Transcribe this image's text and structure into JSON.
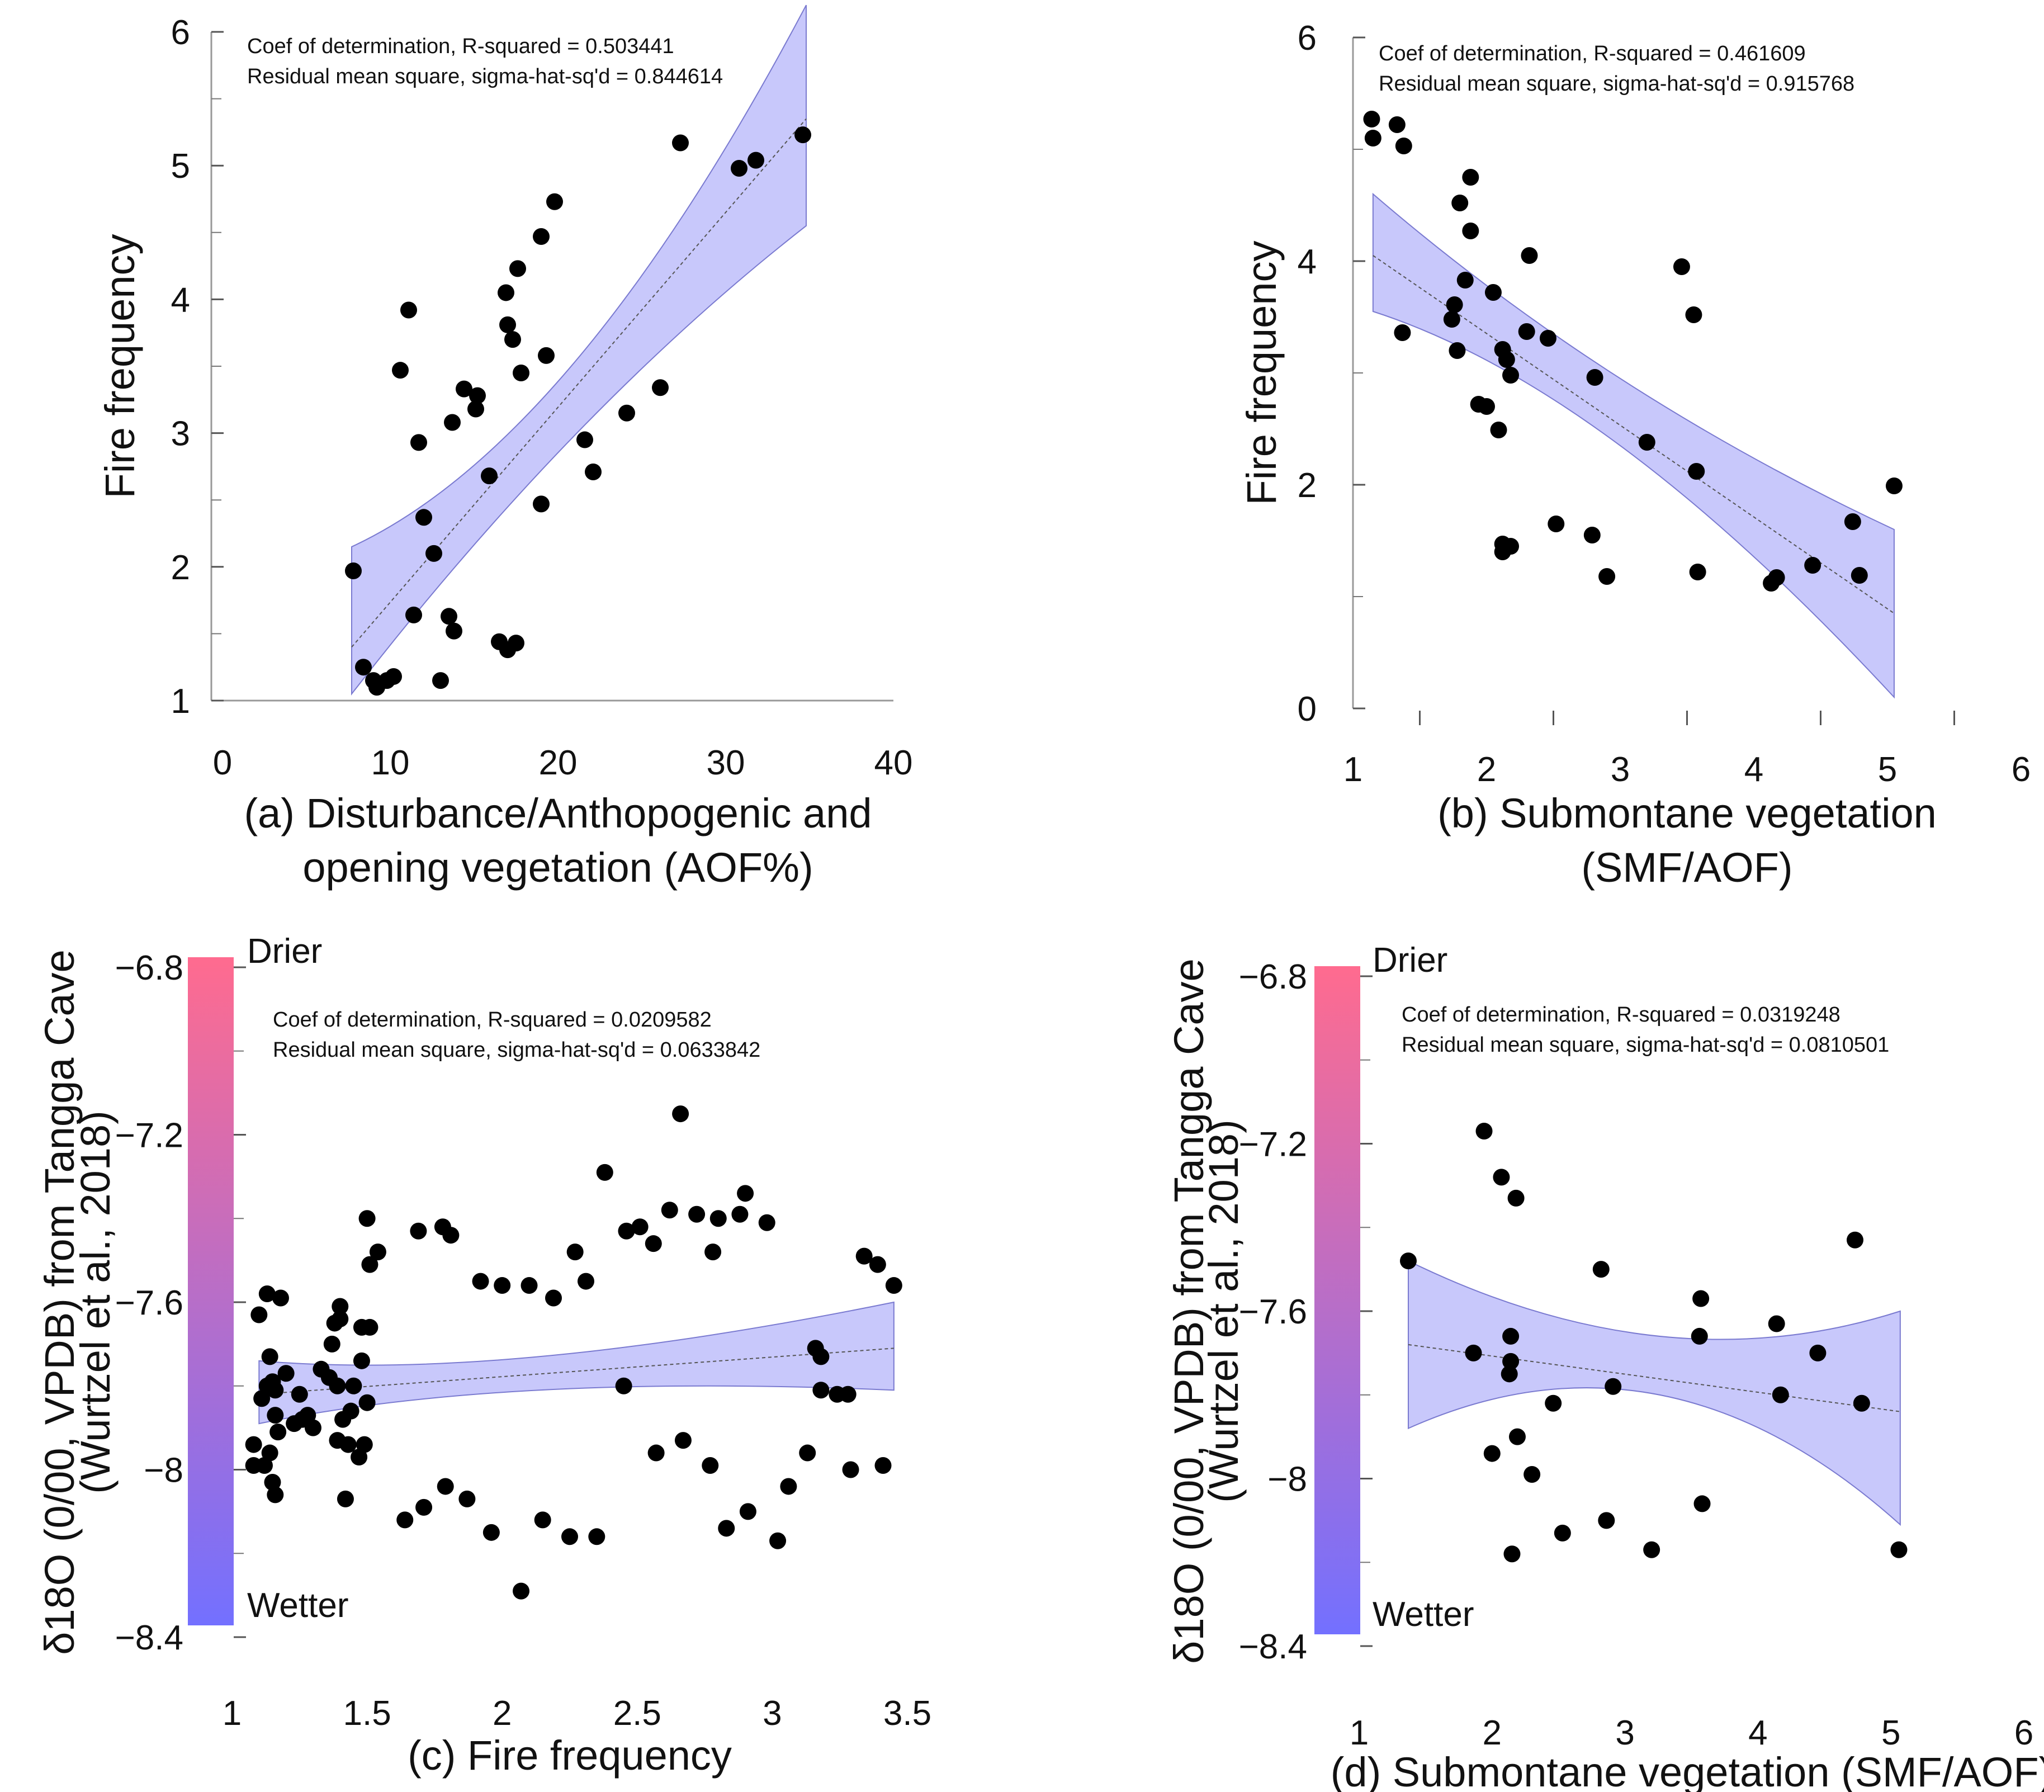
{
  "colorbar": {
    "top_color": "#ff6b8f",
    "bottom_color": "#7370ff",
    "top_label": "Drier",
    "bottom_label": "Wetter",
    "top_label_color": "#e8173f",
    "bottom_label_color": "#2a1ad8"
  },
  "band_color": "#c8c8fb",
  "point_color": "#000000",
  "chart_data": [
    {
      "id": "a",
      "type": "scatter",
      "xlabel": [
        "(a) Disturbance/Anthopogenic and",
        "opening vegetation (AOF%)"
      ],
      "ylabel": "Fire frequency",
      "xlim": [
        0,
        40
      ],
      "ylim": [
        1,
        6
      ],
      "xticks": [
        0,
        10,
        20,
        30,
        40
      ],
      "yticks": [
        1,
        2,
        3,
        4,
        5,
        6
      ],
      "yminor": [
        1.5,
        2.5,
        3.5,
        4.5,
        5.5
      ],
      "annotations": [
        "Coef of determination, R-squared = 0.503441",
        "Residual mean square, sigma-hat-sq'd = 0.844614"
      ],
      "fit": {
        "x0": 7.7,
        "x1": 34.8,
        "y0": 1.4,
        "y1": 5.35
      },
      "band": {
        "upper": [
          [
            7.7,
            2.15
          ],
          [
            21,
            3.55
          ],
          [
            34.8,
            6.2
          ]
        ],
        "lower": [
          [
            7.7,
            1.05
          ],
          [
            21,
            3.0
          ],
          [
            34.8,
            4.55
          ]
        ]
      },
      "points": [
        [
          7.8,
          1.97
        ],
        [
          8.4,
          1.25
        ],
        [
          9.0,
          1.15
        ],
        [
          9.2,
          1.1
        ],
        [
          9.8,
          1.15
        ],
        [
          10.2,
          1.18
        ],
        [
          10.6,
          3.47
        ],
        [
          11.1,
          3.92
        ],
        [
          11.4,
          1.64
        ],
        [
          11.7,
          2.93
        ],
        [
          12.0,
          2.37
        ],
        [
          12.6,
          2.1
        ],
        [
          13.0,
          1.15
        ],
        [
          13.5,
          1.63
        ],
        [
          13.7,
          3.08
        ],
        [
          13.8,
          1.52
        ],
        [
          14.4,
          3.33
        ],
        [
          15.1,
          3.18
        ],
        [
          15.2,
          3.28
        ],
        [
          15.9,
          2.68
        ],
        [
          16.5,
          1.44
        ],
        [
          16.9,
          4.05
        ],
        [
          17.0,
          1.38
        ],
        [
          17.0,
          3.81
        ],
        [
          17.3,
          3.7
        ],
        [
          17.5,
          1.43
        ],
        [
          17.6,
          4.23
        ],
        [
          17.8,
          3.45
        ],
        [
          19.0,
          4.47
        ],
        [
          19.0,
          2.47
        ],
        [
          19.3,
          3.58
        ],
        [
          19.8,
          4.73
        ],
        [
          21.6,
          2.95
        ],
        [
          22.1,
          2.71
        ],
        [
          24.1,
          3.15
        ],
        [
          26.1,
          3.34
        ],
        [
          27.3,
          5.17
        ],
        [
          30.8,
          4.98
        ],
        [
          31.8,
          5.04
        ],
        [
          34.6,
          5.23
        ]
      ]
    },
    {
      "id": "b",
      "type": "scatter",
      "xlabel": [
        "(b) Submontane vegetation",
        "(SMF/AOF)"
      ],
      "ylabel": "Fire frequency",
      "xlim": [
        1,
        6
      ],
      "ylim": [
        0,
        6
      ],
      "xticks": [
        1,
        2,
        3,
        4,
        5,
        6
      ],
      "xminor": [
        1.5,
        2.5,
        3.5,
        4.5,
        5.5
      ],
      "yticks": [
        0,
        2,
        4,
        6
      ],
      "yminor": [
        1,
        3,
        5
      ],
      "annotations": [
        "Coef of determination, R-squared = 0.461609",
        "Residual mean square, sigma-hat-sq'd = 0.915768"
      ],
      "fit": {
        "x0": 1.15,
        "x1": 5.05,
        "y0": 4.05,
        "y1": 0.85
      },
      "band": {
        "upper": [
          [
            1.15,
            4.6
          ],
          [
            2.9,
            2.95
          ],
          [
            5.05,
            1.6
          ]
        ],
        "lower": [
          [
            1.15,
            3.55
          ],
          [
            2.9,
            2.35
          ],
          [
            5.05,
            0.1
          ]
        ]
      },
      "points": [
        [
          1.14,
          5.27
        ],
        [
          1.15,
          5.1
        ],
        [
          1.33,
          5.22
        ],
        [
          1.38,
          5.03
        ],
        [
          1.37,
          3.36
        ],
        [
          1.74,
          3.48
        ],
        [
          1.76,
          3.61
        ],
        [
          1.78,
          3.2
        ],
        [
          1.8,
          4.52
        ],
        [
          1.84,
          3.83
        ],
        [
          1.88,
          4.75
        ],
        [
          1.88,
          4.27
        ],
        [
          1.94,
          2.72
        ],
        [
          2.0,
          2.7
        ],
        [
          2.05,
          3.72
        ],
        [
          2.09,
          2.49
        ],
        [
          2.12,
          3.21
        ],
        [
          2.12,
          1.47
        ],
        [
          2.12,
          1.4
        ],
        [
          2.15,
          3.12
        ],
        [
          2.18,
          2.98
        ],
        [
          2.18,
          1.45
        ],
        [
          2.3,
          3.37
        ],
        [
          2.32,
          4.05
        ],
        [
          2.46,
          3.31
        ],
        [
          2.52,
          1.65
        ],
        [
          2.79,
          1.55
        ],
        [
          2.81,
          2.96
        ],
        [
          2.9,
          1.18
        ],
        [
          3.2,
          2.38
        ],
        [
          3.46,
          3.95
        ],
        [
          3.55,
          3.52
        ],
        [
          3.57,
          2.12
        ],
        [
          3.58,
          1.22
        ],
        [
          4.13,
          1.12
        ],
        [
          4.17,
          1.17
        ],
        [
          4.44,
          1.28
        ],
        [
          4.74,
          1.67
        ],
        [
          4.79,
          1.19
        ],
        [
          5.05,
          1.99
        ]
      ]
    },
    {
      "id": "c",
      "type": "scatter",
      "xlabel": [
        "(c) Fire frequency"
      ],
      "ylabel": "δ18O (0/00, VPDB) from Tangga Cave",
      "ylabel2": "(Wurtzel et al., 2018)",
      "xlim": [
        1,
        3.5
      ],
      "ylim": [
        -8.4,
        -6.8
      ],
      "xticks": [
        1,
        1.5,
        2,
        2.5,
        3,
        3.5
      ],
      "yticks": [
        -8.4,
        -8,
        -7.6,
        -7.2,
        -6.8
      ],
      "ytick_labels": [
        "−8.4",
        "−8",
        "−7.6",
        "−7.2",
        "−6.8"
      ],
      "yminor": [
        -8.2,
        -7.8,
        -7.4,
        -7.0
      ],
      "annotations": [
        "Coef of determination, R-squared = 0.0209582",
        "Residual mean square, sigma-hat-sq'd = 0.0633842"
      ],
      "fit": {
        "x0": 1.1,
        "x1": 3.45,
        "y0": -7.82,
        "y1": -7.71
      },
      "band": {
        "upper": [
          [
            1.1,
            -7.74
          ],
          [
            2.0,
            -7.73
          ],
          [
            3.45,
            -7.6
          ]
        ],
        "lower": [
          [
            1.1,
            -7.89
          ],
          [
            2.0,
            -7.81
          ],
          [
            3.45,
            -7.81
          ]
        ]
      },
      "points": [
        [
          1.08,
          -7.94
        ],
        [
          1.08,
          -7.99
        ],
        [
          1.1,
          -7.63
        ],
        [
          1.11,
          -7.83
        ],
        [
          1.12,
          -7.99
        ],
        [
          1.13,
          -7.8
        ],
        [
          1.13,
          -7.58
        ],
        [
          1.14,
          -7.73
        ],
        [
          1.14,
          -7.96
        ],
        [
          1.15,
          -8.03
        ],
        [
          1.15,
          -7.79
        ],
        [
          1.16,
          -7.81
        ],
        [
          1.16,
          -8.06
        ],
        [
          1.16,
          -7.87
        ],
        [
          1.17,
          -7.91
        ],
        [
          1.18,
          -7.59
        ],
        [
          1.2,
          -7.77
        ],
        [
          1.23,
          -7.89
        ],
        [
          1.25,
          -7.82
        ],
        [
          1.26,
          -7.88
        ],
        [
          1.28,
          -7.87
        ],
        [
          1.3,
          -7.9
        ],
        [
          1.33,
          -7.76
        ],
        [
          1.36,
          -7.78
        ],
        [
          1.37,
          -7.7
        ],
        [
          1.38,
          -7.65
        ],
        [
          1.39,
          -7.8
        ],
        [
          1.39,
          -7.93
        ],
        [
          1.4,
          -7.61
        ],
        [
          1.4,
          -7.64
        ],
        [
          1.41,
          -7.88
        ],
        [
          1.42,
          -8.07
        ],
        [
          1.43,
          -7.94
        ],
        [
          1.44,
          -7.86
        ],
        [
          1.45,
          -7.8
        ],
        [
          1.47,
          -7.97
        ],
        [
          1.48,
          -7.66
        ],
        [
          1.48,
          -7.74
        ],
        [
          1.49,
          -7.94
        ],
        [
          1.5,
          -7.4
        ],
        [
          1.5,
          -7.84
        ],
        [
          1.51,
          -7.66
        ],
        [
          1.51,
          -7.51
        ],
        [
          1.54,
          -7.48
        ],
        [
          1.64,
          -8.12
        ],
        [
          1.69,
          -7.43
        ],
        [
          1.71,
          -8.09
        ],
        [
          1.78,
          -7.42
        ],
        [
          1.79,
          -8.04
        ],
        [
          1.81,
          -7.44
        ],
        [
          1.87,
          -8.07
        ],
        [
          1.92,
          -7.55
        ],
        [
          1.96,
          -8.15
        ],
        [
          2.0,
          -7.56
        ],
        [
          2.07,
          -8.29
        ],
        [
          2.1,
          -7.56
        ],
        [
          2.15,
          -8.12
        ],
        [
          2.19,
          -7.59
        ],
        [
          2.25,
          -8.16
        ],
        [
          2.27,
          -7.48
        ],
        [
          2.31,
          -7.55
        ],
        [
          2.35,
          -8.16
        ],
        [
          2.38,
          -7.29
        ],
        [
          2.45,
          -7.8
        ],
        [
          2.46,
          -7.43
        ],
        [
          2.51,
          -7.42
        ],
        [
          2.56,
          -7.46
        ],
        [
          2.57,
          -7.96
        ],
        [
          2.62,
          -7.38
        ],
        [
          2.66,
          -7.15
        ],
        [
          2.67,
          -7.93
        ],
        [
          2.72,
          -7.39
        ],
        [
          2.77,
          -7.99
        ],
        [
          2.78,
          -7.48
        ],
        [
          2.8,
          -7.4
        ],
        [
          2.83,
          -8.14
        ],
        [
          2.88,
          -7.39
        ],
        [
          2.9,
          -7.34
        ],
        [
          2.91,
          -8.1
        ],
        [
          2.98,
          -7.41
        ],
        [
          3.02,
          -8.17
        ],
        [
          3.06,
          -8.04
        ],
        [
          3.13,
          -7.96
        ],
        [
          3.16,
          -7.71
        ],
        [
          3.18,
          -7.73
        ],
        [
          3.18,
          -7.81
        ],
        [
          3.24,
          -7.82
        ],
        [
          3.28,
          -7.82
        ],
        [
          3.29,
          -8.0
        ],
        [
          3.34,
          -7.49
        ],
        [
          3.39,
          -7.51
        ],
        [
          3.41,
          -7.99
        ],
        [
          3.45,
          -7.56
        ]
      ]
    },
    {
      "id": "d",
      "type": "scatter",
      "xlabel": [
        "(d) Submontane vegetation (SMF/AOF)"
      ],
      "ylabel": "δ18O (0/00, VPDB) from Tangga Cave",
      "ylabel2": "(Wurtzel et al., 2018)",
      "xlim": [
        1,
        6
      ],
      "ylim": [
        -8.4,
        -6.8
      ],
      "xticks": [
        1,
        2,
        3,
        4,
        5,
        6
      ],
      "yticks": [
        -8.4,
        -8,
        -7.6,
        -7.2,
        -6.8
      ],
      "ytick_labels": [
        "−8.4",
        "−8",
        "−7.6",
        "−7.2",
        "−6.8"
      ],
      "yminor": [
        -8.2,
        -7.8,
        -7.4,
        -7.0
      ],
      "annotations": [
        "Coef of determination, R-squared = 0.0319248",
        "Residual mean square, sigma-hat-sq'd = 0.0810501"
      ],
      "fit": {
        "x0": 1.37,
        "x1": 5.07,
        "y0": -7.68,
        "y1": -7.84
      },
      "band": {
        "upper": [
          [
            1.37,
            -7.48
          ],
          [
            3.3,
            -7.66
          ],
          [
            5.07,
            -7.6
          ]
        ],
        "lower": [
          [
            1.37,
            -7.88
          ],
          [
            3.3,
            -7.8
          ],
          [
            5.07,
            -8.11
          ]
        ]
      },
      "points": [
        [
          1.37,
          -7.48
        ],
        [
          1.86,
          -7.7
        ],
        [
          1.94,
          -7.17
        ],
        [
          2.0,
          -7.94
        ],
        [
          2.07,
          -7.28
        ],
        [
          2.13,
          -7.75
        ],
        [
          2.14,
          -7.72
        ],
        [
          2.14,
          -7.66
        ],
        [
          2.15,
          -8.18
        ],
        [
          2.18,
          -7.33
        ],
        [
          2.19,
          -7.9
        ],
        [
          2.3,
          -7.99
        ],
        [
          2.46,
          -7.82
        ],
        [
          2.53,
          -8.13
        ],
        [
          2.82,
          -7.5
        ],
        [
          2.86,
          -8.1
        ],
        [
          2.91,
          -7.78
        ],
        [
          3.2,
          -8.17
        ],
        [
          3.56,
          -7.66
        ],
        [
          3.57,
          -7.57
        ],
        [
          3.58,
          -8.06
        ],
        [
          4.14,
          -7.63
        ],
        [
          4.17,
          -7.8
        ],
        [
          4.45,
          -7.7
        ],
        [
          4.73,
          -7.43
        ],
        [
          4.78,
          -7.82
        ],
        [
          5.06,
          -8.17
        ]
      ]
    }
  ]
}
